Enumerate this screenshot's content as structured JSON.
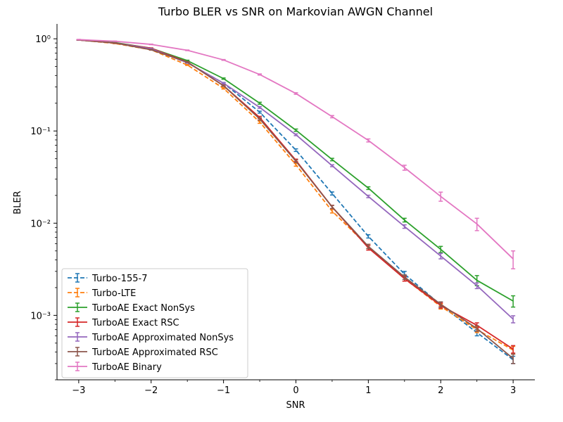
{
  "chart_data": {
    "type": "line",
    "title": "Turbo BLER vs SNR on Markovian AWGN Channel",
    "xlabel": "SNR",
    "ylabel": "BLER",
    "yscale": "log",
    "xlim": [
      -3.3,
      3.3
    ],
    "ylim": [
      0.0002,
      1.45
    ],
    "xticks": [
      -3,
      -2,
      -1,
      0,
      1,
      2,
      3
    ],
    "xtick_labels": [
      "−3",
      "−2",
      "−1",
      "0",
      "1",
      "2",
      "3"
    ],
    "yticks": [
      0.001,
      0.01,
      0.1,
      1
    ],
    "ytick_labels": [
      "10⁻³",
      "10⁻²",
      "10⁻¹",
      "10⁰"
    ],
    "legend_position": "lower-left",
    "grid": false,
    "x": [
      -3,
      -2.5,
      -2,
      -1.5,
      -1,
      -0.5,
      0,
      0.5,
      1,
      1.5,
      2,
      2.5,
      3
    ],
    "series": [
      {
        "name": "Turbo-155-7",
        "color": "#1f77b4",
        "linestyle": "dashed",
        "values": [
          0.97,
          0.9,
          0.78,
          0.55,
          0.33,
          0.16,
          0.062,
          0.021,
          0.0072,
          0.0028,
          0.0013,
          0.00065,
          0.00033
        ],
        "errors": [
          0.005,
          0.005,
          0.006,
          0.006,
          0.006,
          0.004,
          0.002,
          0.0008,
          0.0003,
          0.0002,
          0.0001,
          5e-05,
          3e-05
        ]
      },
      {
        "name": "Turbo-LTE",
        "color": "#ff7f0e",
        "linestyle": "dashed",
        "values": [
          0.97,
          0.89,
          0.76,
          0.52,
          0.29,
          0.125,
          0.043,
          0.0135,
          0.0056,
          0.0025,
          0.00125,
          0.0007,
          0.00042
        ],
        "errors": [
          0.005,
          0.005,
          0.006,
          0.006,
          0.005,
          0.004,
          0.0015,
          0.0006,
          0.0003,
          0.00015,
          8e-05,
          5e-05,
          4e-05
        ]
      },
      {
        "name": "TurboAE Exact NonSys",
        "color": "#2ca02c",
        "linestyle": "solid",
        "values": [
          0.97,
          0.91,
          0.79,
          0.58,
          0.37,
          0.2,
          0.102,
          0.049,
          0.024,
          0.0108,
          0.0052,
          0.0024,
          0.00143
        ],
        "errors": [
          0.005,
          0.005,
          0.006,
          0.006,
          0.006,
          0.005,
          0.003,
          0.0015,
          0.0008,
          0.0005,
          0.0004,
          0.0003,
          0.0002
        ]
      },
      {
        "name": "TurboAE Exact RSC",
        "color": "#d62728",
        "linestyle": "solid",
        "values": [
          0.97,
          0.9,
          0.79,
          0.56,
          0.31,
          0.14,
          0.048,
          0.015,
          0.0054,
          0.0025,
          0.00128,
          0.00078,
          0.00043
        ],
        "errors": [
          0.005,
          0.005,
          0.006,
          0.006,
          0.005,
          0.004,
          0.0015,
          0.0006,
          0.0003,
          0.00015,
          8e-05,
          5e-05,
          4e-05
        ]
      },
      {
        "name": "TurboAE Approximated NonSys",
        "color": "#9467bd",
        "linestyle": "solid",
        "values": [
          0.97,
          0.9,
          0.78,
          0.55,
          0.33,
          0.18,
          0.091,
          0.042,
          0.0195,
          0.0092,
          0.0044,
          0.0021,
          0.00091
        ],
        "errors": [
          0.005,
          0.005,
          0.006,
          0.006,
          0.005,
          0.004,
          0.002,
          0.001,
          0.0006,
          0.0004,
          0.0003,
          0.00015,
          8e-05
        ]
      },
      {
        "name": "TurboAE Approximated RSC",
        "color": "#8c564b",
        "linestyle": "solid",
        "values": [
          0.97,
          0.9,
          0.76,
          0.56,
          0.31,
          0.135,
          0.047,
          0.015,
          0.0056,
          0.0026,
          0.00132,
          0.00072,
          0.00034
        ],
        "errors": [
          0.005,
          0.005,
          0.006,
          0.006,
          0.005,
          0.004,
          0.0015,
          0.0006,
          0.0003,
          0.00015,
          8e-05,
          5e-05,
          4e-05
        ]
      },
      {
        "name": "TurboAE Binary",
        "color": "#e377c2",
        "linestyle": "solid",
        "values": [
          0.98,
          0.94,
          0.87,
          0.75,
          0.59,
          0.41,
          0.255,
          0.143,
          0.079,
          0.04,
          0.0195,
          0.0098,
          0.0041
        ],
        "errors": [
          0.005,
          0.005,
          0.006,
          0.006,
          0.006,
          0.006,
          0.005,
          0.004,
          0.003,
          0.0025,
          0.0022,
          0.0015,
          0.0009
        ]
      }
    ]
  }
}
